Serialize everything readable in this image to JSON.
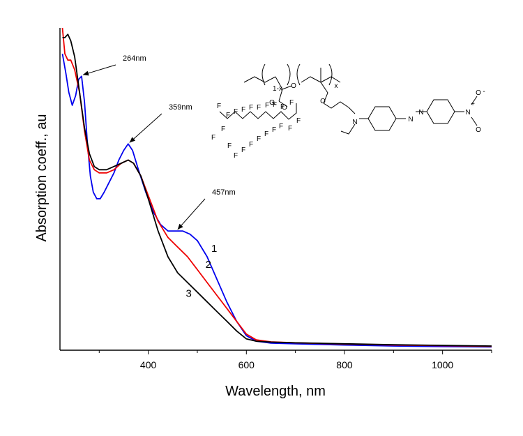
{
  "chart_data": {
    "type": "line",
    "xlabel": "Wavelength, nm",
    "ylabel": "Absorption coeff., au",
    "xlim": [
      220,
      1100
    ],
    "ylim": [
      0,
      1.0
    ],
    "xticks": [
      400,
      600,
      800,
      1000
    ],
    "grid": false,
    "series": [
      {
        "name": "1",
        "color": "#0000ee",
        "points": [
          [
            225,
            0.92
          ],
          [
            232,
            0.86
          ],
          [
            238,
            0.8
          ],
          [
            245,
            0.76
          ],
          [
            252,
            0.79
          ],
          [
            258,
            0.84
          ],
          [
            264,
            0.85
          ],
          [
            270,
            0.77
          ],
          [
            276,
            0.64
          ],
          [
            282,
            0.54
          ],
          [
            288,
            0.49
          ],
          [
            295,
            0.47
          ],
          [
            302,
            0.47
          ],
          [
            310,
            0.49
          ],
          [
            320,
            0.52
          ],
          [
            330,
            0.55
          ],
          [
            340,
            0.59
          ],
          [
            350,
            0.62
          ],
          [
            359,
            0.64
          ],
          [
            368,
            0.62
          ],
          [
            380,
            0.56
          ],
          [
            395,
            0.49
          ],
          [
            410,
            0.43
          ],
          [
            425,
            0.39
          ],
          [
            440,
            0.37
          ],
          [
            457,
            0.37
          ],
          [
            470,
            0.37
          ],
          [
            485,
            0.36
          ],
          [
            500,
            0.34
          ],
          [
            520,
            0.29
          ],
          [
            540,
            0.22
          ],
          [
            560,
            0.15
          ],
          [
            580,
            0.09
          ],
          [
            600,
            0.045
          ],
          [
            620,
            0.028
          ],
          [
            650,
            0.022
          ],
          [
            700,
            0.02
          ],
          [
            800,
            0.016
          ],
          [
            900,
            0.013
          ],
          [
            1000,
            0.011
          ],
          [
            1100,
            0.01
          ]
        ]
      },
      {
        "name": "2",
        "color": "#ee0000",
        "points": [
          [
            225,
            1.0
          ],
          [
            230,
            0.92
          ],
          [
            236,
            0.9
          ],
          [
            242,
            0.9
          ],
          [
            250,
            0.87
          ],
          [
            260,
            0.8
          ],
          [
            270,
            0.68
          ],
          [
            280,
            0.59
          ],
          [
            290,
            0.56
          ],
          [
            300,
            0.55
          ],
          [
            315,
            0.55
          ],
          [
            330,
            0.56
          ],
          [
            345,
            0.58
          ],
          [
            359,
            0.59
          ],
          [
            370,
            0.58
          ],
          [
            385,
            0.54
          ],
          [
            400,
            0.48
          ],
          [
            420,
            0.4
          ],
          [
            440,
            0.35
          ],
          [
            460,
            0.32
          ],
          [
            480,
            0.29
          ],
          [
            500,
            0.25
          ],
          [
            520,
            0.21
          ],
          [
            540,
            0.17
          ],
          [
            560,
            0.13
          ],
          [
            580,
            0.09
          ],
          [
            600,
            0.05
          ],
          [
            620,
            0.032
          ],
          [
            650,
            0.026
          ],
          [
            700,
            0.023
          ],
          [
            800,
            0.019
          ],
          [
            900,
            0.016
          ],
          [
            1000,
            0.014
          ],
          [
            1100,
            0.012
          ]
        ]
      },
      {
        "name": "3",
        "color": "#000000",
        "points": [
          [
            225,
            0.97
          ],
          [
            230,
            0.97
          ],
          [
            236,
            0.98
          ],
          [
            242,
            0.96
          ],
          [
            250,
            0.91
          ],
          [
            260,
            0.8
          ],
          [
            270,
            0.69
          ],
          [
            280,
            0.61
          ],
          [
            290,
            0.57
          ],
          [
            300,
            0.56
          ],
          [
            315,
            0.56
          ],
          [
            330,
            0.57
          ],
          [
            345,
            0.58
          ],
          [
            359,
            0.59
          ],
          [
            370,
            0.58
          ],
          [
            385,
            0.54
          ],
          [
            400,
            0.47
          ],
          [
            420,
            0.37
          ],
          [
            440,
            0.29
          ],
          [
            460,
            0.24
          ],
          [
            480,
            0.21
          ],
          [
            500,
            0.18
          ],
          [
            520,
            0.15
          ],
          [
            540,
            0.12
          ],
          [
            560,
            0.09
          ],
          [
            580,
            0.06
          ],
          [
            600,
            0.035
          ],
          [
            620,
            0.028
          ],
          [
            650,
            0.025
          ],
          [
            700,
            0.023
          ],
          [
            800,
            0.02
          ],
          [
            900,
            0.017
          ],
          [
            1000,
            0.015
          ],
          [
            1100,
            0.013
          ]
        ]
      }
    ],
    "annotations": [
      {
        "label": "264nm",
        "x": 264,
        "y": 0.85
      },
      {
        "label": "359nm",
        "x": 359,
        "y": 0.64
      },
      {
        "label": "457nm",
        "x": 457,
        "y": 0.37
      }
    ],
    "curve_labels": [
      {
        "label": "1",
        "x": 520,
        "y": 0.34
      },
      {
        "label": "2",
        "x": 508,
        "y": 0.29
      },
      {
        "label": "3",
        "x": 468,
        "y": 0.2
      }
    ]
  },
  "molecule": {
    "subscript_left": "1-x",
    "subscript_right": "x",
    "F": "F",
    "N": "N",
    "O": "O",
    "nitro_plus": "+",
    "nitro_minus": "-"
  }
}
